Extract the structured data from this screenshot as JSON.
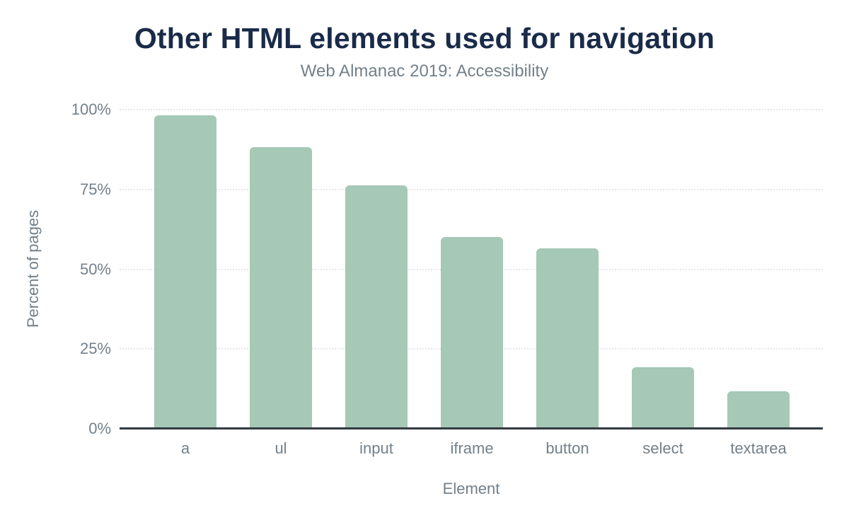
{
  "chart_data": {
    "type": "bar",
    "title": "Other HTML elements used for navigation",
    "subtitle": "Web Almanac 2019: Accessibility",
    "xlabel": "Element",
    "ylabel": "Percent of pages",
    "categories": [
      "a",
      "ul",
      "input",
      "iframe",
      "button",
      "select",
      "textarea"
    ],
    "values": [
      98.2,
      88.2,
      76.3,
      60.0,
      56.5,
      19.3,
      11.8
    ],
    "y_ticks": [
      "0%",
      "25%",
      "50%",
      "75%",
      "100%"
    ],
    "y_tick_values": [
      0,
      25,
      50,
      75,
      100
    ],
    "ylim": [
      0,
      100
    ],
    "grid": true,
    "legend": "none",
    "bar_color": "#a5c8b7",
    "title_color": "#1a2b49",
    "text_color": "#73808a",
    "axis_color": "#333a40",
    "gridline_color": "#e7e7e7"
  }
}
